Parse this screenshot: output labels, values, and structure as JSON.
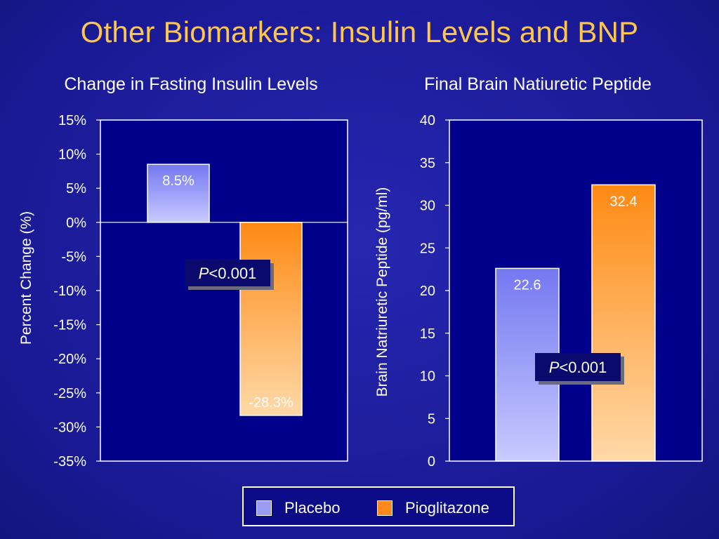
{
  "slide_title": "Other Biomarkers: Insulin Levels and BNP",
  "legend": [
    {
      "label": "Placebo",
      "color": "#9a9cf2"
    },
    {
      "label": "Pioglitazone",
      "color": "#ff8a1c"
    }
  ],
  "colors": {
    "plot_background": "#00008b",
    "plot_border": "#ffffff",
    "text": "#ffffff",
    "title": "#ffc64d",
    "placebo_top": "#7478f0",
    "placebo_bottom": "#c8caff",
    "pioglitazone_top": "#ff8a14",
    "pioglitazone_bottom": "#ffd9a8"
  },
  "chart_data": [
    {
      "type": "bar",
      "title": "Change in Fasting Insulin Levels",
      "xlabel": "",
      "ylabel": "Percent  Change (%)",
      "ylim": [
        -35,
        15
      ],
      "tick_values": [
        15,
        10,
        5,
        0,
        -5,
        -10,
        -15,
        -20,
        -25,
        -30,
        -35
      ],
      "tick_labels": [
        "15%",
        "10%",
        "5%",
        "0%",
        "-5%",
        "-10%",
        "-15%",
        "-20%",
        "-25%",
        "-30%",
        "-35%"
      ],
      "categories": [
        "Placebo",
        "Pioglitazone"
      ],
      "values": [
        8.5,
        -28.3
      ],
      "data_labels": [
        "8.5%",
        "-28.3%"
      ],
      "annotation": {
        "p_italic": "P",
        "p_rest": "<0.001"
      },
      "grid": false,
      "legend": "bottom-center"
    },
    {
      "type": "bar",
      "title": "Final Brain Natiuretic Peptide",
      "xlabel": "",
      "ylabel": "Brain Natriuretic Peptide (pg/ml)",
      "ylim": [
        0,
        40
      ],
      "tick_values": [
        40,
        35,
        30,
        25,
        20,
        15,
        10,
        5,
        0
      ],
      "tick_labels": [
        "40",
        "35",
        "30",
        "25",
        "20",
        "15",
        "10",
        "5",
        "0"
      ],
      "categories": [
        "Placebo",
        "Pioglitazone"
      ],
      "values": [
        22.6,
        32.4
      ],
      "data_labels": [
        "22.6",
        "32.4"
      ],
      "annotation": {
        "p_italic": "P",
        "p_rest": "<0.001"
      },
      "grid": false,
      "legend": "bottom-center"
    }
  ]
}
